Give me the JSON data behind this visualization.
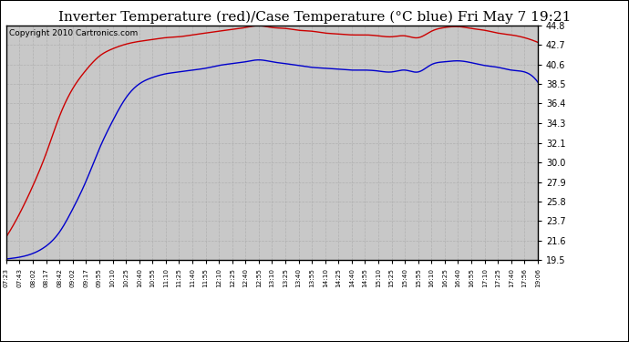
{
  "title": "Inverter Temperature (red)/Case Temperature (°C blue) Fri May 7 19:21",
  "copyright": "Copyright 2010 Cartronics.com",
  "bg_color": "#ffffff",
  "plot_bg_color": "#c8c8c8",
  "grid_color": "#aaaaaa",
  "yticks": [
    19.5,
    21.6,
    23.7,
    25.8,
    27.9,
    30.0,
    32.1,
    34.3,
    36.4,
    38.5,
    40.6,
    42.7,
    44.8
  ],
  "ymin": 19.5,
  "ymax": 44.8,
  "xtick_labels": [
    "07:23",
    "07:43",
    "08:02",
    "08:17",
    "08:42",
    "09:02",
    "09:17",
    "09:55",
    "10:10",
    "10:25",
    "10:40",
    "10:55",
    "11:10",
    "11:25",
    "11:40",
    "11:55",
    "12:10",
    "12:25",
    "12:40",
    "12:55",
    "13:10",
    "13:25",
    "13:40",
    "13:55",
    "14:10",
    "14:25",
    "14:40",
    "14:55",
    "15:10",
    "15:25",
    "15:40",
    "15:55",
    "16:10",
    "16:25",
    "16:40",
    "16:55",
    "17:10",
    "17:25",
    "17:40",
    "17:56",
    "19:06"
  ],
  "red_values": [
    22.0,
    24.5,
    27.5,
    31.0,
    35.0,
    38.0,
    40.0,
    41.5,
    42.3,
    42.8,
    43.1,
    43.3,
    43.5,
    43.6,
    43.8,
    44.0,
    44.2,
    44.4,
    44.6,
    44.8,
    44.6,
    44.5,
    44.3,
    44.2,
    44.0,
    43.9,
    43.8,
    43.8,
    43.7,
    43.6,
    43.7,
    43.5,
    44.2,
    44.6,
    44.7,
    44.5,
    44.3,
    44.0,
    43.8,
    43.5,
    43.0
  ],
  "blue_values": [
    19.6,
    19.8,
    20.2,
    21.0,
    22.5,
    25.0,
    28.0,
    31.5,
    34.5,
    37.0,
    38.5,
    39.2,
    39.6,
    39.8,
    40.0,
    40.2,
    40.5,
    40.7,
    40.9,
    41.1,
    40.9,
    40.7,
    40.5,
    40.3,
    40.2,
    40.1,
    40.0,
    40.0,
    39.9,
    39.8,
    40.0,
    39.8,
    40.6,
    40.9,
    41.0,
    40.8,
    40.5,
    40.3,
    40.0,
    39.8,
    38.7
  ],
  "red_color": "#cc0000",
  "blue_color": "#0000cc",
  "title_fontsize": 11,
  "copyright_fontsize": 6.5
}
